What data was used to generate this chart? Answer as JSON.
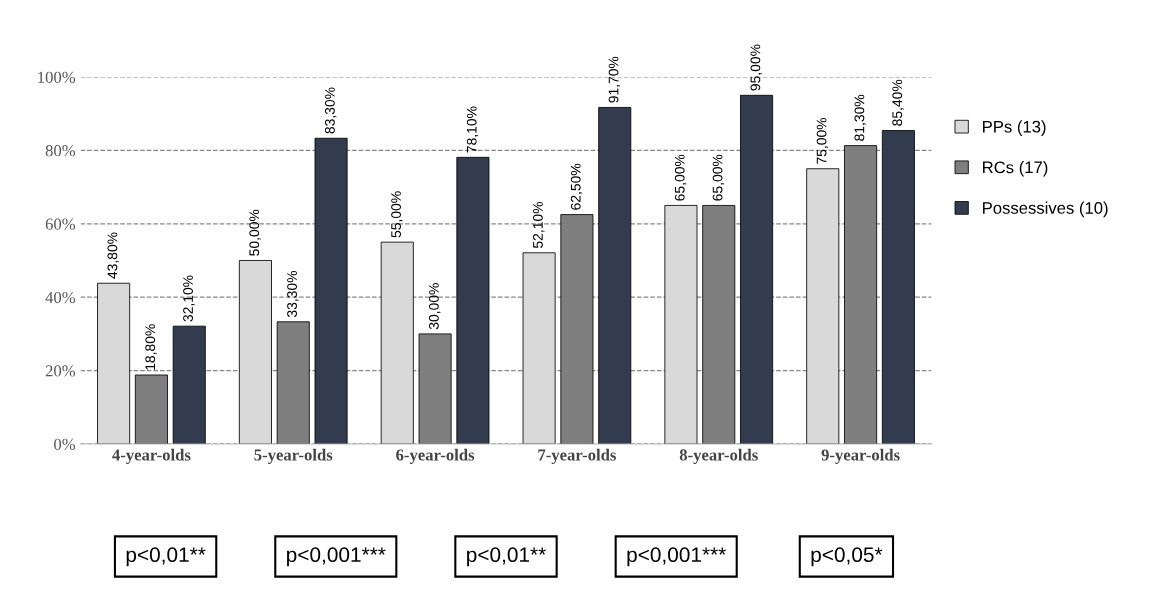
{
  "chart_data": {
    "type": "bar",
    "categories": [
      "4-year-olds",
      "5-year-olds",
      "6-year-olds",
      "7-year-olds",
      "8-year-olds",
      "9-year-olds"
    ],
    "series": [
      {
        "name": "PPs (13)",
        "color": "#d9d9d9",
        "values": [
          43.8,
          50.0,
          55.0,
          52.1,
          65.0,
          75.0
        ],
        "value_labels": [
          "43,80%",
          "50,00%",
          "55,00%",
          "52,10%",
          "65,00%",
          "75,00%"
        ]
      },
      {
        "name": "RCs (17)",
        "color": "#7f7f7f",
        "values": [
          18.8,
          33.3,
          30.0,
          62.5,
          65.0,
          81.3
        ],
        "value_labels": [
          "18,80%",
          "33,30%",
          "30,00%",
          "62,50%",
          "65,00%",
          "81,30%"
        ]
      },
      {
        "name": "Possessives (10)",
        "color": "#323c4e",
        "values": [
          32.1,
          83.3,
          78.1,
          91.7,
          95.0,
          85.4
        ],
        "value_labels": [
          "32,10%",
          "83,30%",
          "78,10%",
          "91,70%",
          "95,00%",
          "85,40%"
        ]
      }
    ],
    "ylim": [
      0,
      100
    ],
    "yticks": [
      {
        "value": 0,
        "label": "0%"
      },
      {
        "value": 20,
        "label": "20%"
      },
      {
        "value": 40,
        "label": "40%"
      },
      {
        "value": 60,
        "label": "60%"
      },
      {
        "value": 80,
        "label": "80%"
      },
      {
        "value": 100,
        "label": "100%"
      }
    ],
    "grid": "y",
    "line_style": "dashed",
    "legend": "right",
    "annotations": [
      "p<0,01**",
      "p<0,001***",
      "p<0,01**",
      "p<0,001***",
      "p<0,05*"
    ]
  }
}
